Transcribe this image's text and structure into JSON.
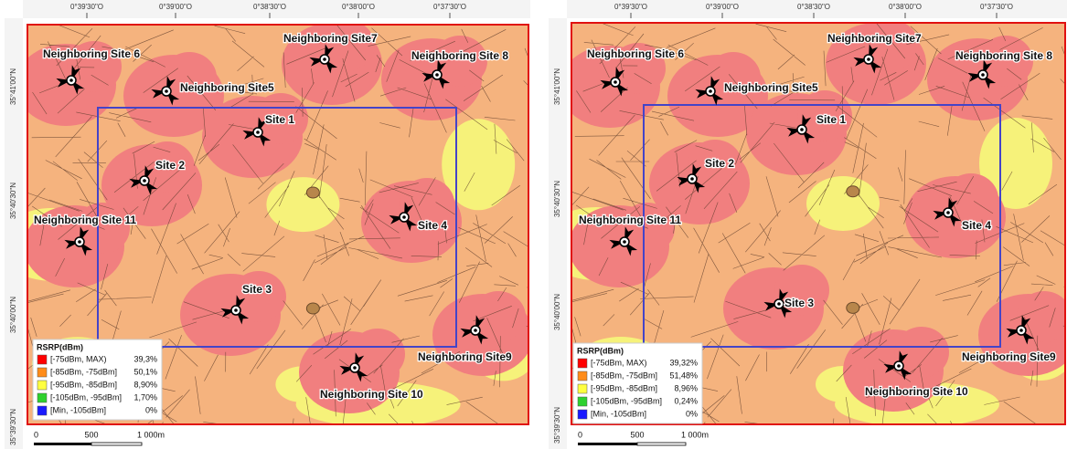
{
  "panels": [
    {
      "lon_labels": [
        "0°39'30\"O",
        "0°39'00\"O",
        "0°38'30\"O",
        "0°38'00\"O",
        "0°37'30\"O"
      ],
      "lat_labels": [
        "35°41'00\"N",
        "35°40'30\"N",
        "35°40'00\"N",
        "35°39'30\"N"
      ],
      "sites": [
        "Neighboring Site 6",
        "Neighboring Site7",
        "Neighboring Site 8",
        "Neighboring Site5",
        "Site 1",
        "Site 2",
        "Neighboring Site 11",
        "Site 4",
        "Site 3",
        "Neighboring Site9",
        "Neighboring Site 10"
      ],
      "legend": {
        "title": "RSRP(dBm)",
        "items": [
          {
            "range": "[-75dBm, MAX)",
            "share": "39,3%"
          },
          {
            "range": "[-85dBm, -75dBm]",
            "share": "50,1%"
          },
          {
            "range": "[-95dBm, -85dBm]",
            "share": "8,90%"
          },
          {
            "range": "[-105dBm, -95dBm]",
            "share": "1,70%"
          },
          {
            "range": "[Min, -105dBm]",
            "share": "0%"
          }
        ]
      },
      "scale": [
        "0",
        "500",
        "1 000m"
      ]
    },
    {
      "lon_labels": [
        "0°39'30\"O",
        "0°39'00\"O",
        "0°38'30\"O",
        "0°38'00\"O",
        "0°37'30\"O"
      ],
      "lat_labels": [
        "35°41'00\"N",
        "35°40'30\"N",
        "35°40'00\"N",
        "35°39'30\"N"
      ],
      "sites": [
        "Neighboring Site 6",
        "Neighboring Site7",
        "Neighboring Site 8",
        "Neighboring Site5",
        "Site 1",
        "Site 2",
        "Neighboring Site 11",
        "Site 4",
        "Site 3",
        "Neighboring Site9",
        "Neighboring Site 10"
      ],
      "legend": {
        "title": "RSRP(dBm)",
        "items": [
          {
            "range": "[-75dBm, MAX)",
            "share": "39,32%"
          },
          {
            "range": "[-85dBm, -75dBm]",
            "share": "51,48%"
          },
          {
            "range": "[-95dBm, -85dBm]",
            "share": "8,96%"
          },
          {
            "range": "[-105dBm, -95dBm]",
            "share": "0,24%"
          },
          {
            "range": "[Min, -105dBm]",
            "share": "0%"
          }
        ]
      },
      "scale": [
        "0",
        "500",
        "1 000m"
      ]
    }
  ]
}
